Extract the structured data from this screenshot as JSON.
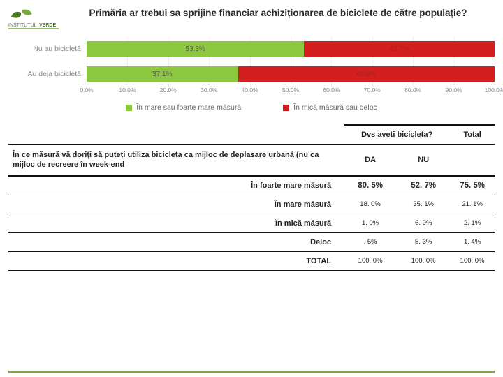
{
  "logo": {
    "leaf1": "#7aa73f",
    "leaf2": "#4a7a1e",
    "text1": "INSTITUTUL",
    "text2": "VERDE",
    "text1_color": "#6a6a6a",
    "text2_color": "#4a7a1e",
    "underline": "#7aa73f"
  },
  "title": "Primăria ar trebui sa sprijine financiar achiziționarea de biciclete de către populație?",
  "chart": {
    "type": "stacked-horizontal-bar",
    "xlim": [
      0,
      100
    ],
    "xtick_step": 10,
    "xtick_suffix": ".0%",
    "grid_color": "#f0f0f0",
    "series": [
      {
        "name": "În mare sau foarte mare măsură",
        "color": "#8dc63f"
      },
      {
        "name": "În mică măsură sau deloc",
        "color": "#d31f1f"
      }
    ],
    "categories": [
      {
        "label": "Nu au bicicletă",
        "segments": [
          {
            "value": 53.3,
            "text": "53.3%",
            "text_color": "#555555"
          },
          {
            "value": 46.7,
            "text": "46.7%",
            "text_color": "#a52020"
          }
        ]
      },
      {
        "label": "Au deja bicicletă",
        "segments": [
          {
            "value": 37.1,
            "text": "37.1%",
            "text_color": "#555555"
          },
          {
            "value": 62.9,
            "text": "62.9%",
            "text_color": "#a52020"
          }
        ]
      }
    ]
  },
  "table": {
    "head1": "Dvs aveti bicicleta?",
    "head_total": "Total",
    "question": "În ce măsură vă doriți să puteți utiliza bicicleta ca mijloc de deplasare urbană (nu ca mijloc de recreere în week-end",
    "col_da": "DA",
    "col_nu": "NU",
    "rows": [
      {
        "label": "În foarte mare măsură",
        "da": "80. 5%",
        "nu": "52. 7%",
        "total": "75. 5%",
        "style": "bold"
      },
      {
        "label": "În mare măsură",
        "da": "18. 0%",
        "nu": "35. 1%",
        "total": "21. 1%",
        "style": "small"
      },
      {
        "label": "În mică măsură",
        "da": "1. 0%",
        "nu": "6. 9%",
        "total": "2. 1%",
        "style": "small"
      },
      {
        "label": "Deloc",
        "da": ". 5%",
        "nu": "5. 3%",
        "total": "1. 4%",
        "style": "small"
      },
      {
        "label": "TOTAL",
        "da": "100. 0%",
        "nu": "100. 0%",
        "total": "100. 0%",
        "style": "small"
      }
    ]
  },
  "footer_color": "#7aa73f"
}
